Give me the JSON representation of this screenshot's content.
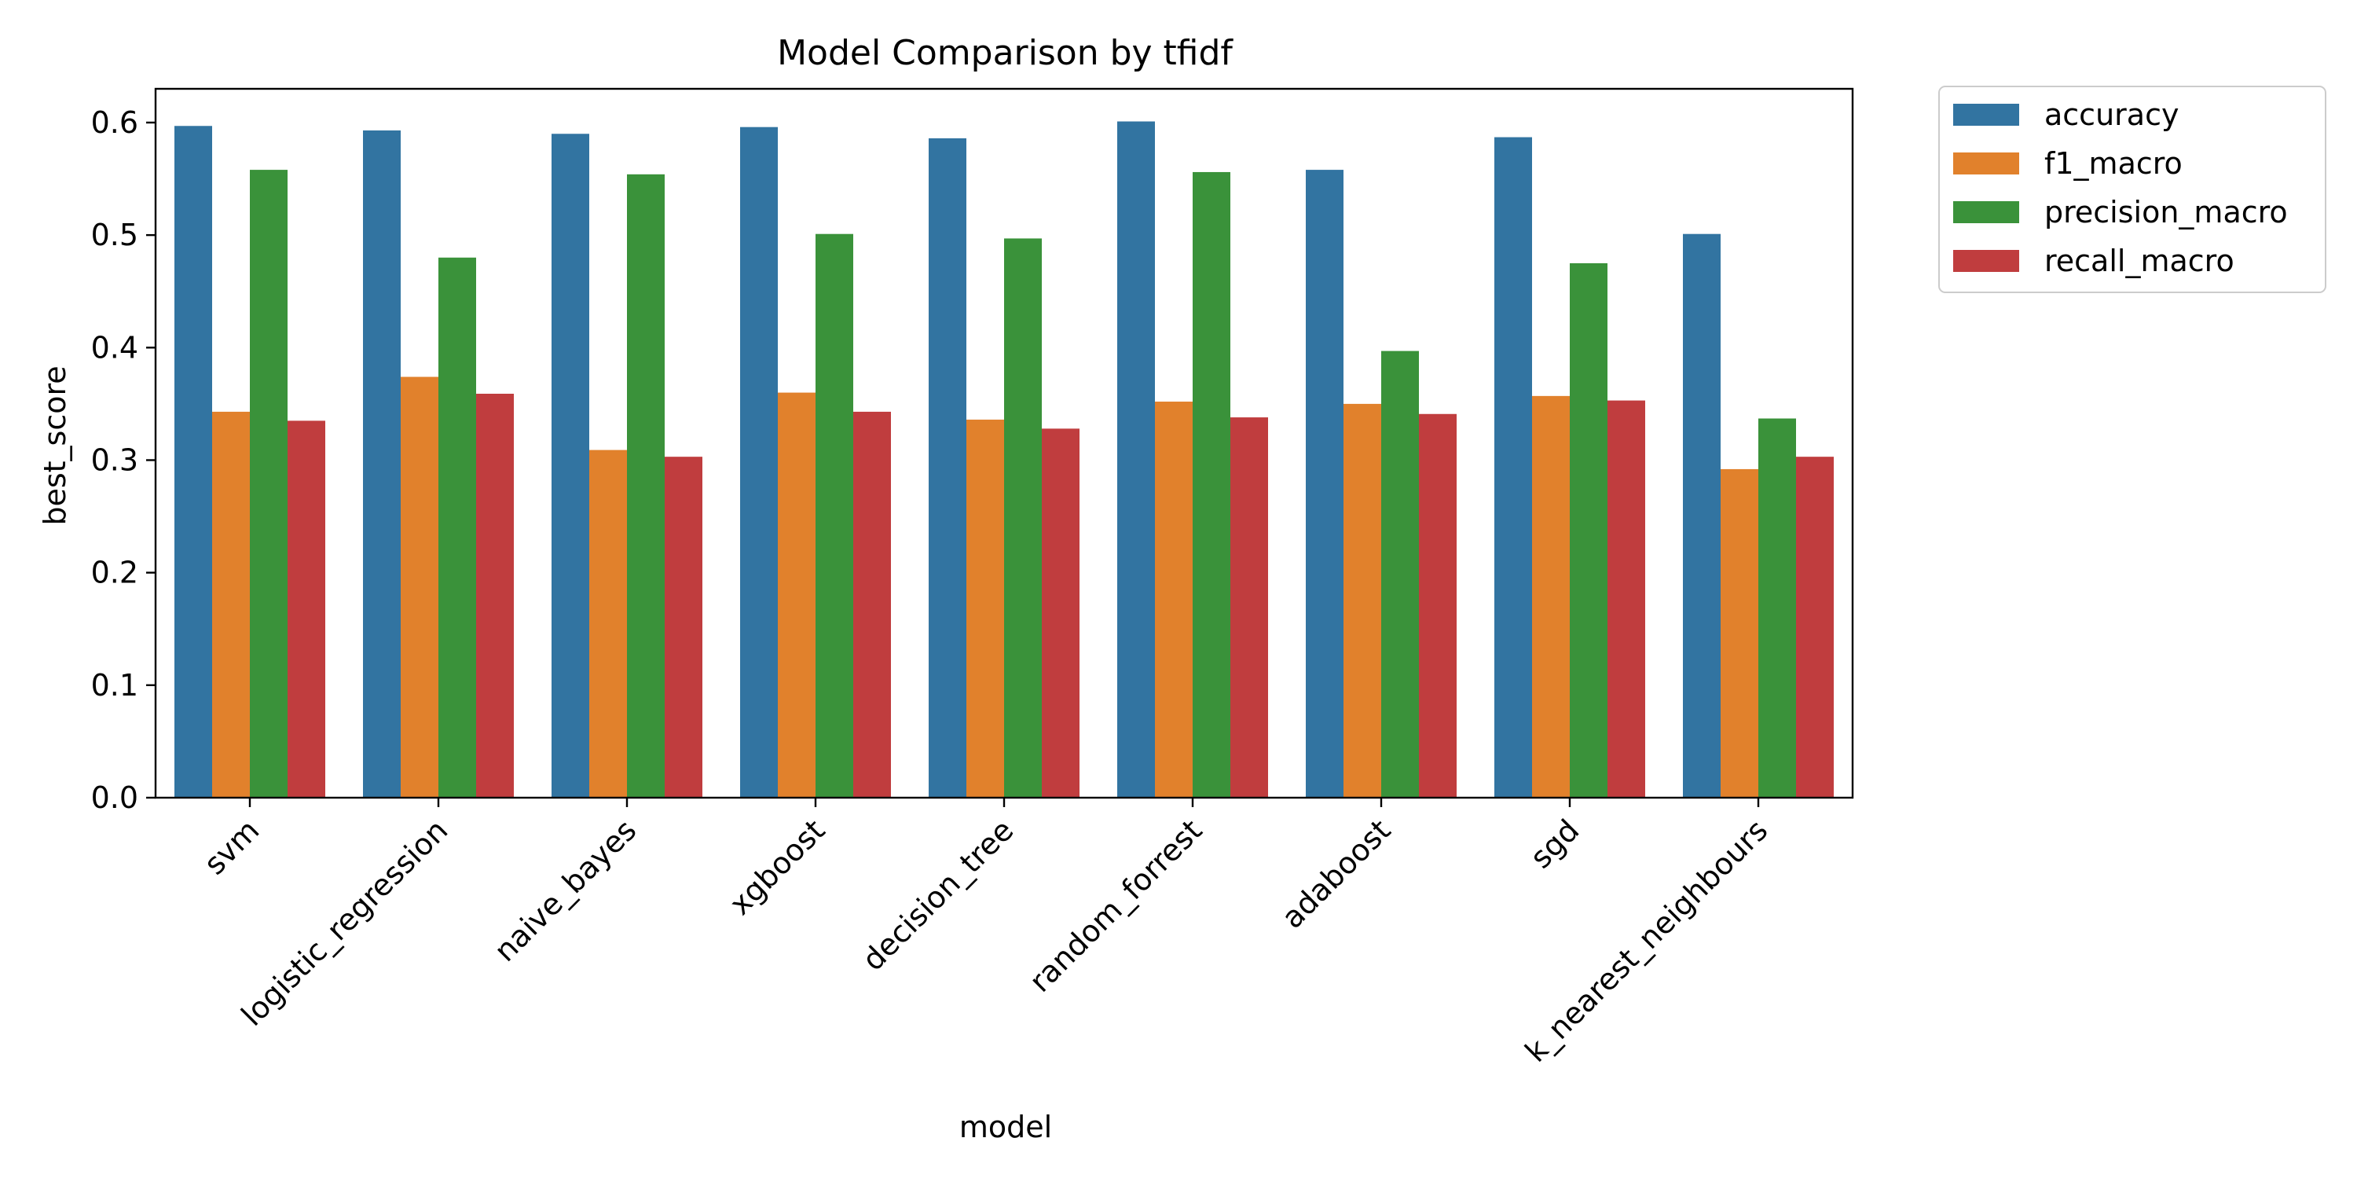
{
  "chart_data": {
    "type": "bar",
    "title": "Model Comparison by tfidf",
    "xlabel": "model",
    "ylabel": "best_score",
    "ylim": [
      0,
      0.63
    ],
    "yticks": [
      0.0,
      0.1,
      0.2,
      0.3,
      0.4,
      0.5,
      0.6
    ],
    "ytick_labels": [
      "0.0",
      "0.1",
      "0.2",
      "0.3",
      "0.4",
      "0.5",
      "0.6"
    ],
    "grid": false,
    "legend_position": "outside-top-right",
    "categories": [
      "svm",
      "logistic_regression",
      "naive_bayes",
      "xgboost",
      "decision_tree",
      "random_forrest",
      "adaboost",
      "sgd",
      "k_nearest_neighbours"
    ],
    "series": [
      {
        "name": "accuracy",
        "color": "#3274a1",
        "values": [
          0.597,
          0.593,
          0.59,
          0.596,
          0.586,
          0.601,
          0.558,
          0.587,
          0.501
        ]
      },
      {
        "name": "f1_macro",
        "color": "#e1812c",
        "values": [
          0.343,
          0.374,
          0.309,
          0.36,
          0.336,
          0.352,
          0.35,
          0.357,
          0.292
        ]
      },
      {
        "name": "precision_macro",
        "color": "#3a923a",
        "values": [
          0.558,
          0.48,
          0.554,
          0.501,
          0.497,
          0.556,
          0.397,
          0.475,
          0.337
        ]
      },
      {
        "name": "recall_macro",
        "color": "#c03d3e",
        "values": [
          0.335,
          0.359,
          0.303,
          0.343,
          0.328,
          0.338,
          0.341,
          0.353,
          0.303
        ]
      }
    ]
  }
}
